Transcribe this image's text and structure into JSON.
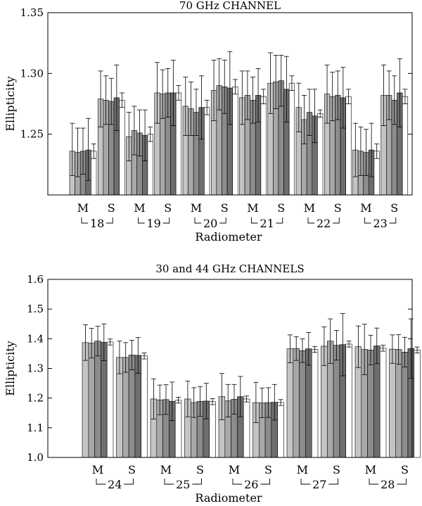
{
  "chart_data": [
    {
      "type": "bar",
      "title": "70 GHz CHANNEL",
      "xlabel": "Radiometer",
      "ylabel": "Ellipticity",
      "ylim": [
        1.2,
        1.35
      ],
      "yticks": [
        1.25,
        1.3,
        1.35
      ],
      "ytick_labels": [
        "1.25",
        "1.30",
        "1.35"
      ],
      "groups": [
        {
          "radiometer": "18",
          "bars": [
            {
              "label": "M",
              "values": [
                1.236,
                1.235,
                1.236,
                1.237,
                1.236
              ],
              "err_lo": [
                0.02,
                0.02,
                0.019,
                0.025,
                0.006
              ],
              "err_hi": [
                0.023,
                0.02,
                0.019,
                0.026,
                0.006
              ]
            },
            {
              "label": "S",
              "values": [
                1.279,
                1.278,
                1.277,
                1.28,
                1.278
              ],
              "err_lo": [
                0.023,
                0.02,
                0.019,
                0.027,
                0.006
              ],
              "err_hi": [
                0.023,
                0.02,
                0.019,
                0.027,
                0.006
              ]
            }
          ]
        },
        {
          "radiometer": "19",
          "bars": [
            {
              "label": "M",
              "values": [
                1.248,
                1.253,
                1.251,
                1.249,
                1.25
              ],
              "err_lo": [
                0.02,
                0.02,
                0.019,
                0.021,
                0.006
              ],
              "err_hi": [
                0.02,
                0.02,
                0.019,
                0.021,
                0.006
              ]
            },
            {
              "label": "S",
              "values": [
                1.284,
                1.283,
                1.284,
                1.284,
                1.284
              ],
              "err_lo": [
                0.025,
                0.02,
                0.02,
                0.027,
                0.006
              ],
              "err_hi": [
                0.025,
                0.02,
                0.02,
                0.027,
                0.006
              ]
            }
          ]
        },
        {
          "radiometer": "20",
          "bars": [
            {
              "label": "M",
              "values": [
                1.273,
                1.271,
                1.268,
                1.272,
                1.272
              ],
              "err_lo": [
                0.024,
                0.022,
                0.019,
                0.026,
                0.006
              ],
              "err_hi": [
                0.024,
                0.022,
                0.019,
                0.026,
                0.006
              ]
            },
            {
              "label": "S",
              "values": [
                1.286,
                1.29,
                1.289,
                1.288,
                1.289
              ],
              "err_lo": [
                0.025,
                0.02,
                0.022,
                0.03,
                0.006
              ],
              "err_hi": [
                0.025,
                0.022,
                0.022,
                0.03,
                0.006
              ]
            }
          ]
        },
        {
          "radiometer": "21",
          "bars": [
            {
              "label": "M",
              "values": [
                1.28,
                1.282,
                1.278,
                1.282,
                1.281
              ],
              "err_lo": [
                0.022,
                0.02,
                0.019,
                0.022,
                0.006
              ],
              "err_hi": [
                0.022,
                0.02,
                0.019,
                0.022,
                0.006
              ]
            },
            {
              "label": "S",
              "values": [
                1.292,
                1.293,
                1.294,
                1.287,
                1.292
              ],
              "err_lo": [
                0.025,
                0.022,
                0.021,
                0.027,
                0.006
              ],
              "err_hi": [
                0.025,
                0.022,
                0.021,
                0.027,
                0.006
              ]
            }
          ]
        },
        {
          "radiometer": "22",
          "bars": [
            {
              "label": "M",
              "values": [
                1.272,
                1.262,
                1.268,
                1.265,
                1.267
              ],
              "err_lo": [
                0.02,
                0.02,
                0.019,
                0.022,
                0.003
              ],
              "err_hi": [
                0.02,
                0.02,
                0.019,
                0.022,
                0.003
              ]
            },
            {
              "label": "S",
              "values": [
                1.283,
                1.281,
                1.282,
                1.28,
                1.281
              ],
              "err_lo": [
                0.024,
                0.02,
                0.02,
                0.025,
                0.006
              ],
              "err_hi": [
                0.024,
                0.02,
                0.02,
                0.025,
                0.006
              ]
            }
          ]
        },
        {
          "radiometer": "23",
          "bars": [
            {
              "label": "M",
              "values": [
                1.237,
                1.236,
                1.235,
                1.237,
                1.236
              ],
              "err_lo": [
                0.022,
                0.02,
                0.019,
                0.022,
                0.006
              ],
              "err_hi": [
                0.022,
                0.02,
                0.019,
                0.022,
                0.006
              ]
            },
            {
              "label": "S",
              "values": [
                1.282,
                1.282,
                1.278,
                1.284,
                1.281
              ],
              "err_lo": [
                0.025,
                0.02,
                0.02,
                0.028,
                0.006
              ],
              "err_hi": [
                0.025,
                0.02,
                0.02,
                0.028,
                0.006
              ]
            }
          ]
        }
      ]
    },
    {
      "type": "bar",
      "title": "30 and 44 GHz CHANNELS",
      "xlabel": "Radiometer",
      "ylabel": "Ellipticity",
      "ylim": [
        1.0,
        1.6
      ],
      "yticks": [
        1.0,
        1.1,
        1.2,
        1.3,
        1.4,
        1.5,
        1.6
      ],
      "ytick_labels": [
        "1.0",
        "1.1",
        "1.2",
        "1.3",
        "1.4",
        "1.5",
        "1.6"
      ],
      "groups": [
        {
          "radiometer": "24",
          "bars": [
            {
              "label": "M",
              "values": [
                1.387,
                1.385,
                1.392,
                1.388,
                1.389
              ],
              "err_lo": [
                0.06,
                0.05,
                0.05,
                0.062,
                0.01
              ],
              "err_hi": [
                0.06,
                0.05,
                0.05,
                0.062,
                0.01
              ]
            },
            {
              "label": "S",
              "values": [
                1.337,
                1.337,
                1.345,
                1.344,
                1.342
              ],
              "err_lo": [
                0.055,
                0.05,
                0.05,
                0.06,
                0.01
              ],
              "err_hi": [
                0.055,
                0.05,
                0.05,
                0.06,
                0.01
              ]
            }
          ]
        },
        {
          "radiometer": "25",
          "bars": [
            {
              "label": "M",
              "values": [
                1.197,
                1.194,
                1.195,
                1.189,
                1.193
              ],
              "err_lo": [
                0.068,
                0.05,
                0.05,
                0.065,
                0.01
              ],
              "err_hi": [
                0.068,
                0.05,
                0.05,
                0.065,
                0.01
              ]
            },
            {
              "label": "S",
              "values": [
                1.197,
                1.185,
                1.189,
                1.19,
                1.188
              ],
              "err_lo": [
                0.06,
                0.05,
                0.05,
                0.06,
                0.01
              ],
              "err_hi": [
                0.06,
                0.05,
                0.05,
                0.06,
                0.01
              ]
            }
          ]
        },
        {
          "radiometer": "26",
          "bars": [
            {
              "label": "M",
              "values": [
                1.205,
                1.191,
                1.196,
                1.205,
                1.197
              ],
              "err_lo": [
                0.078,
                0.055,
                0.05,
                0.068,
                0.01
              ],
              "err_hi": [
                0.078,
                0.055,
                0.05,
                0.068,
                0.01
              ]
            },
            {
              "label": "S",
              "values": [
                1.185,
                1.184,
                1.185,
                1.186,
                1.185
              ],
              "err_lo": [
                0.068,
                0.05,
                0.05,
                0.06,
                0.01
              ],
              "err_hi": [
                0.068,
                0.05,
                0.05,
                0.06,
                0.01
              ]
            }
          ]
        },
        {
          "radiometer": "27",
          "bars": [
            {
              "label": "M",
              "values": [
                1.366,
                1.367,
                1.36,
                1.366,
                1.364
              ],
              "err_lo": [
                0.047,
                0.04,
                0.04,
                0.055,
                0.01
              ],
              "err_hi": [
                0.047,
                0.04,
                0.04,
                0.055,
                0.01
              ]
            },
            {
              "label": "S",
              "values": [
                1.375,
                1.392,
                1.378,
                1.38,
                1.382
              ],
              "err_lo": [
                0.065,
                0.075,
                0.05,
                0.105,
                0.01
              ],
              "err_hi": [
                0.065,
                0.075,
                0.05,
                0.105,
                0.01
              ]
            }
          ]
        },
        {
          "radiometer": "28",
          "bars": [
            {
              "label": "M",
              "values": [
                1.373,
                1.364,
                1.362,
                1.376,
                1.368
              ],
              "err_lo": [
                0.07,
                0.085,
                0.05,
                0.06,
                0.01
              ],
              "err_hi": [
                0.07,
                0.085,
                0.05,
                0.06,
                0.01
              ]
            },
            {
              "label": "S",
              "values": [
                1.365,
                1.364,
                1.355,
                1.367,
                1.362
              ],
              "err_lo": [
                0.048,
                0.05,
                0.05,
                0.1,
                0.01
              ],
              "err_hi": [
                0.048,
                0.05,
                0.05,
                0.1,
                0.01
              ]
            }
          ]
        }
      ]
    }
  ],
  "colors": {
    "bar_fills": [
      "#c4c4c4",
      "#a8a8a8",
      "#8c8c8c",
      "#6e6e6e",
      "#ffffff"
    ],
    "stroke": "#000000"
  }
}
